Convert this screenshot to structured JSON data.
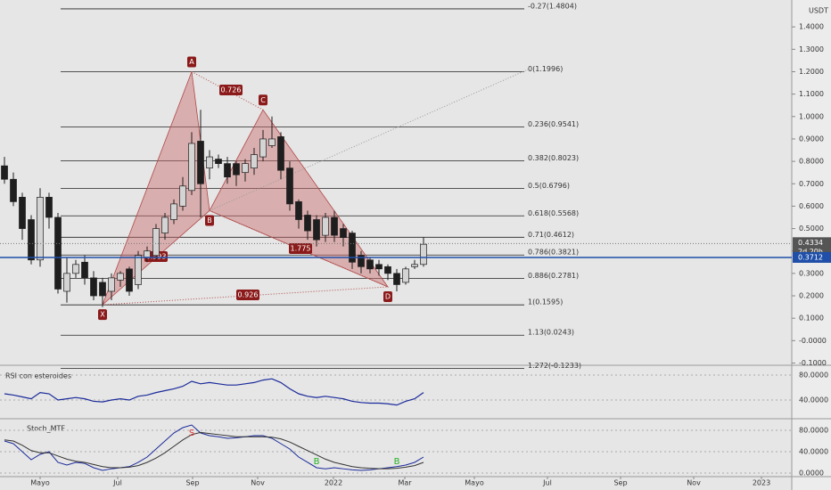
{
  "chart_data": {
    "type": "candlestick",
    "currency": "USDT",
    "open": [
      0.78,
      0.72,
      0.64,
      0.54,
      0.36,
      0.64,
      0.55,
      0.22,
      0.3,
      0.35,
      0.28,
      0.26,
      0.22,
      0.27,
      0.32,
      0.25,
      0.37,
      0.38,
      0.48,
      0.54,
      0.6,
      0.67,
      0.89,
      0.77,
      0.81,
      0.79,
      0.79,
      0.75,
      0.77,
      0.82,
      0.87,
      0.91,
      0.77,
      0.62,
      0.56,
      0.54,
      0.47,
      0.55,
      0.5,
      0.48,
      0.38,
      0.36,
      0.34,
      0.33,
      0.3,
      0.26,
      0.33,
      0.34
    ],
    "high": [
      0.82,
      0.75,
      0.66,
      0.56,
      0.68,
      0.66,
      0.57,
      0.37,
      0.36,
      0.38,
      0.31,
      0.28,
      0.3,
      0.31,
      0.33,
      0.4,
      0.42,
      0.52,
      0.57,
      0.63,
      0.73,
      0.93,
      1.03,
      0.85,
      0.83,
      0.82,
      0.8,
      0.81,
      0.86,
      0.94,
      1.0,
      0.93,
      0.8,
      0.63,
      0.58,
      0.56,
      0.57,
      0.58,
      0.52,
      0.49,
      0.4,
      0.37,
      0.36,
      0.34,
      0.32,
      0.33,
      0.36,
      0.46
    ],
    "low": [
      0.7,
      0.6,
      0.45,
      0.34,
      0.33,
      0.5,
      0.21,
      0.17,
      0.28,
      0.25,
      0.18,
      0.15,
      0.18,
      0.24,
      0.2,
      0.23,
      0.35,
      0.36,
      0.45,
      0.52,
      0.58,
      0.65,
      0.55,
      0.72,
      0.77,
      0.7,
      0.69,
      0.71,
      0.74,
      0.8,
      0.86,
      0.72,
      0.58,
      0.5,
      0.45,
      0.42,
      0.44,
      0.44,
      0.42,
      0.32,
      0.3,
      0.3,
      0.29,
      0.27,
      0.22,
      0.25,
      0.32,
      0.33
    ],
    "close": [
      0.72,
      0.62,
      0.5,
      0.36,
      0.64,
      0.55,
      0.23,
      0.3,
      0.34,
      0.28,
      0.2,
      0.2,
      0.28,
      0.3,
      0.22,
      0.38,
      0.4,
      0.5,
      0.55,
      0.61,
      0.69,
      0.88,
      0.7,
      0.82,
      0.79,
      0.73,
      0.74,
      0.79,
      0.83,
      0.9,
      0.9,
      0.76,
      0.61,
      0.54,
      0.49,
      0.45,
      0.55,
      0.47,
      0.46,
      0.35,
      0.33,
      0.32,
      0.32,
      0.3,
      0.25,
      0.32,
      0.34,
      0.43
    ],
    "up_color": "#d4d4d4",
    "down_color": "#1e1e1e",
    "ylim": [
      -0.11,
      1.52
    ],
    "yticks": [
      {
        "value": 1.4,
        "label": "1.4000"
      },
      {
        "value": 1.3,
        "label": "1.3000"
      },
      {
        "value": 1.2,
        "label": "1.2000"
      },
      {
        "value": 1.1,
        "label": "1.1000"
      },
      {
        "value": 1.0,
        "label": "1.0000"
      },
      {
        "value": 0.9,
        "label": "0.9000"
      },
      {
        "value": 0.8,
        "label": "0.8000"
      },
      {
        "value": 0.7,
        "label": "0.7000"
      },
      {
        "value": 0.6,
        "label": "0.6000"
      },
      {
        "value": 0.5,
        "label": "0.5000"
      },
      {
        "value": 0.4,
        "label": "0.4000"
      },
      {
        "value": 0.3,
        "label": "0.3000"
      },
      {
        "value": 0.2,
        "label": "0.2000"
      },
      {
        "value": 0.1,
        "label": "0.1000"
      },
      {
        "value": 0,
        "label": "-0.0000"
      },
      {
        "value": -0.1,
        "label": "-0.1000"
      }
    ],
    "xlim": [
      -0.5,
      88
    ],
    "xticks": [
      {
        "value": 4,
        "label": "Mayo"
      },
      {
        "value": 12.7,
        "label": "Jul"
      },
      {
        "value": 21.1,
        "label": "Sep"
      },
      {
        "value": 28.4,
        "label": "Nov"
      },
      {
        "value": 36.9,
        "label": "2022"
      },
      {
        "value": 44.9,
        "label": "Mar"
      },
      {
        "value": 52.7,
        "label": "Mayo"
      },
      {
        "value": 60.9,
        "label": "Jul"
      },
      {
        "value": 69.1,
        "label": "Sep"
      },
      {
        "value": 77.3,
        "label": "Nov"
      },
      {
        "value": 84.9,
        "label": "2023"
      }
    ],
    "fib_levels": [
      {
        "value": 1.4804,
        "label": "-0.27(1.4804)"
      },
      {
        "value": 1.1996,
        "label": "0(1.1996)"
      },
      {
        "value": 0.9541,
        "label": "0.236(0.9541)"
      },
      {
        "value": 0.8023,
        "label": "0.382(0.8023)"
      },
      {
        "value": 0.6796,
        "label": "0.5(0.6796)"
      },
      {
        "value": 0.5568,
        "label": "0.618(0.5568)"
      },
      {
        "value": 0.4612,
        "label": "0.71(0.4612)"
      },
      {
        "value": 0.3821,
        "label": "0.786(0.3821)"
      },
      {
        "value": 0.2781,
        "label": "0.886(0.2781)"
      },
      {
        "value": 0.1595,
        "label": "1(0.1595)"
      },
      {
        "value": 0.0243,
        "label": "1.13(0.0243)"
      },
      {
        "value": -0.1233,
        "label": "1.272(-0.1233)"
      }
    ],
    "pattern_points": [
      {
        "label": "X",
        "x": 11,
        "value": 0.16
      },
      {
        "label": "A",
        "x": 21,
        "value": 1.2
      },
      {
        "label": "B",
        "x": 23,
        "value": 0.58
      },
      {
        "label": "C",
        "x": 29,
        "value": 1.03
      },
      {
        "label": "D",
        "x": 43,
        "value": 0.24
      }
    ],
    "pattern_ratios": [
      0.726,
      1.775,
      0.926,
      0.593
    ],
    "last_price": 0.4334,
    "countdown": "2d 20h",
    "line_price": 0.3712,
    "line_color": "#1f4fa8",
    "rsi": {
      "title": "RSI con esteroides",
      "ylim": [
        12.9,
        95.7
      ],
      "yticks": [
        {
          "value": 80,
          "label": "80.0000"
        },
        {
          "value": 40,
          "label": "40.0000"
        }
      ],
      "values": [
        50,
        48,
        45,
        42,
        52,
        50,
        40,
        42,
        44,
        42,
        38,
        37,
        40,
        42,
        40,
        46,
        48,
        52,
        55,
        58,
        62,
        70,
        66,
        68,
        66,
        64,
        64,
        66,
        68,
        72,
        74,
        68,
        58,
        50,
        46,
        44,
        46,
        44,
        42,
        38,
        36,
        35,
        35,
        34,
        32,
        38,
        42,
        52
      ]
    },
    "stoch": {
      "title": "Stoch_MTF",
      "ylim": [
        -6.7,
        101.7
      ],
      "yticks": [
        {
          "value": 80,
          "label": "80.0000"
        },
        {
          "value": 40,
          "label": "40.0000"
        },
        {
          "value": 0,
          "label": "0.0000"
        }
      ],
      "series": [
        {
          "color": "#1a2a9a",
          "values": [
            60,
            55,
            40,
            25,
            35,
            40,
            20,
            15,
            20,
            18,
            10,
            5,
            8,
            10,
            12,
            20,
            30,
            45,
            60,
            75,
            85,
            90,
            75,
            70,
            68,
            65,
            66,
            68,
            70,
            70,
            65,
            55,
            45,
            30,
            20,
            10,
            8,
            10,
            8,
            6,
            5,
            6,
            8,
            10,
            12,
            15,
            20,
            30
          ]
        },
        {
          "color": "#333333",
          "values": [
            62,
            60,
            52,
            42,
            38,
            38,
            32,
            26,
            22,
            20,
            16,
            12,
            10,
            10,
            11,
            14,
            20,
            28,
            38,
            50,
            62,
            72,
            76,
            74,
            72,
            70,
            68,
            68,
            68,
            68,
            67,
            64,
            58,
            50,
            42,
            34,
            26,
            20,
            16,
            12,
            10,
            9,
            8,
            8,
            9,
            11,
            14,
            20
          ]
        }
      ],
      "signals": [
        {
          "label": "S",
          "x": 21,
          "value": 75,
          "color": "#e03030"
        },
        {
          "label": "B",
          "x": 35,
          "value": 22,
          "color": "#22b022"
        },
        {
          "label": "B",
          "x": 44,
          "value": 22,
          "color": "#22b022"
        }
      ]
    }
  }
}
